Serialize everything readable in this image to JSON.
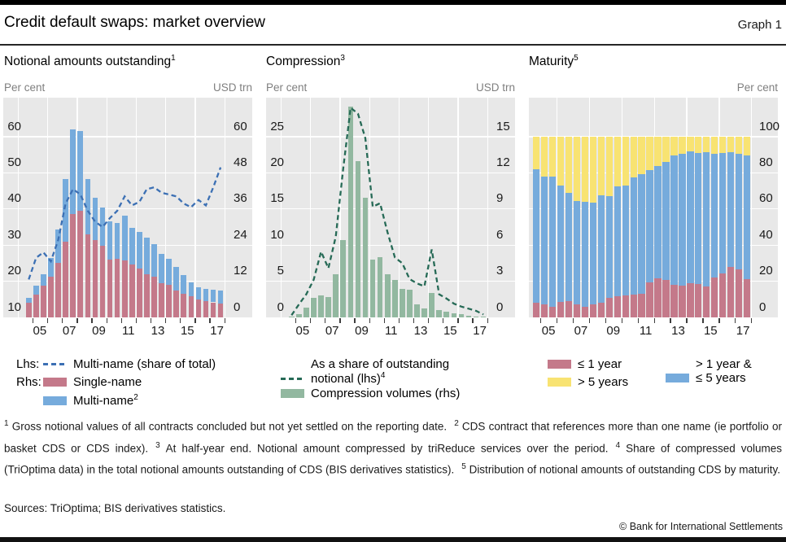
{
  "header": {
    "title": "Credit default swaps: market overview",
    "graph_label": "Graph 1"
  },
  "colors": {
    "single_name_bar": "#c4798a",
    "multi_name_bar": "#76abdc",
    "multi_share_line": "#3c70b4",
    "compression_bar": "#92b8a0",
    "compression_line": "#266a56",
    "maturity_le1y_bar": "#c4798a",
    "maturity_1to5y_bar": "#76abdc",
    "maturity_gt5y_bar": "#f8e372",
    "plot_background": "#e8e8e8",
    "gridline": "#ffffff",
    "tick_mark": "#3d3d3d",
    "muted_label": "#7f7f7f"
  },
  "panels": [
    {
      "title": "Notional amounts outstanding",
      "title_sup": "1",
      "legend": {
        "lhs_prefix": "Lhs:",
        "rhs_prefix": "Rhs:",
        "line_label": "Multi-name (share of total)",
        "bar1_label": "Single-name",
        "bar2_label": "Multi-name",
        "bar2_sup": "2"
      }
    },
    {
      "title": "Compression",
      "title_sup": "3",
      "legend": {
        "line_label_1": "As a share of outstanding",
        "line_label_2": "notional (lhs)",
        "line_sup": "4",
        "bar_label": "Compression volumes (rhs)"
      }
    },
    {
      "title": "Maturity",
      "title_sup": "5",
      "legend": {
        "item1": "≤ 1 year",
        "item2": "> 5 years",
        "item3_line1": "> 1 year &",
        "item3_line2": "≤ 5 years"
      }
    }
  ],
  "chart_data": [
    {
      "type": "stacked-bar+dashed-line",
      "title": "Notional amounts outstanding",
      "x_halfyears": [
        "04-H2",
        "05-H1",
        "05-H2",
        "06-H1",
        "06-H2",
        "07-H1",
        "07-H2",
        "08-H1",
        "08-H2",
        "09-H1",
        "09-H2",
        "10-H1",
        "10-H2",
        "11-H1",
        "11-H2",
        "12-H1",
        "12-H2",
        "13-H1",
        "13-H2",
        "14-H1",
        "14-H2",
        "15-H1",
        "15-H2",
        "16-H1",
        "16-H2",
        "17-H1",
        "17-H2"
      ],
      "x_tick_labels": [
        "05",
        "07",
        "09",
        "11",
        "13",
        "15",
        "17"
      ],
      "left_axis": {
        "label": "Per cent",
        "ticks": [
          60,
          50,
          40,
          30,
          20,
          10
        ]
      },
      "right_axis": {
        "label": "USD trn",
        "ticks": [
          60,
          48,
          36,
          24,
          12,
          0
        ]
      },
      "series": [
        {
          "name": "Single-name",
          "axis": "rhs",
          "type": "bar",
          "color": "#c4798a",
          "values": [
            4.8,
            7.6,
            10.5,
            13.5,
            18.1,
            25.1,
            34.3,
            35.4,
            27.5,
            25.7,
            23.9,
            19.1,
            19.4,
            19.0,
            17.6,
            16.2,
            14.4,
            13.5,
            11.3,
            10.8,
            9.0,
            7.9,
            6.9,
            5.9,
            5.4,
            5.0,
            4.5
          ]
        },
        {
          "name": "Multi-name",
          "axis": "rhs",
          "type": "bar",
          "color": "#76abdc",
          "values": [
            1.7,
            3.0,
            3.7,
            6.2,
            11.1,
            20.9,
            28.0,
            26.4,
            18.5,
            14.0,
            12.7,
            12.7,
            11.9,
            14.8,
            12.2,
            12.2,
            12.2,
            10.9,
            9.9,
            8.6,
            7.7,
            6.1,
            4.8,
            4.0,
            4.1,
            4.3,
            4.5
          ]
        },
        {
          "name": "Multi-name (share of total)",
          "axis": "lhs",
          "type": "line",
          "color": "#3c70b4",
          "values": [
            20.5,
            26.5,
            28,
            25.5,
            31.5,
            41.5,
            45.5,
            44,
            39.5,
            36.5,
            35,
            37.5,
            39.5,
            43.5,
            41,
            42,
            45.5,
            46,
            44.5,
            44,
            43.5,
            41.5,
            40.5,
            42.5,
            41,
            46,
            51.5
          ]
        }
      ]
    },
    {
      "type": "bar+dashed-line",
      "title": "Compression",
      "x_halfyears": [
        "04-H2",
        "05-H1",
        "05-H2",
        "06-H1",
        "06-H2",
        "07-H1",
        "07-H2",
        "08-H1",
        "08-H2",
        "09-H1",
        "09-H2",
        "10-H1",
        "10-H2",
        "11-H1",
        "11-H2",
        "12-H1",
        "12-H2",
        "13-H1",
        "13-H2",
        "14-H1",
        "14-H2",
        "15-H1",
        "15-H2",
        "16-H1",
        "16-H2",
        "17-H1",
        "17-H2"
      ],
      "x_tick_labels": [
        "05",
        "07",
        "09",
        "11",
        "13",
        "15",
        "17"
      ],
      "left_axis": {
        "label": "Per cent",
        "ticks": [
          25,
          20,
          15,
          10,
          5,
          0
        ]
      },
      "right_axis": {
        "label": "USD trn",
        "ticks": [
          15,
          12,
          9,
          6,
          3,
          0
        ]
      },
      "series": [
        {
          "name": "Compression volumes (rhs)",
          "axis": "rhs",
          "type": "bar",
          "color": "#92b8a0",
          "values": [
            0.05,
            0.3,
            0.8,
            1.6,
            1.85,
            1.7,
            3.6,
            6.4,
            17.5,
            13.0,
            9.9,
            4.8,
            5.0,
            3.6,
            3.1,
            2.35,
            2.3,
            1.1,
            0.75,
            2.0,
            0.6,
            0.45,
            0.35,
            0.25,
            0.15,
            0.1,
            0.05
          ]
        },
        {
          "name": "As a share of outstanding notional (lhs)",
          "axis": "lhs",
          "type": "line",
          "color": "#266a56",
          "values": [
            0.3,
            1.8,
            3.2,
            5.2,
            9.1,
            6.8,
            11.2,
            20.6,
            29.0,
            28.2,
            24.8,
            15.3,
            15.8,
            11.8,
            8.3,
            7.5,
            5.3,
            4.7,
            4.3,
            9.4,
            3.2,
            2.6,
            1.9,
            1.5,
            1.2,
            0.9,
            0.4
          ]
        }
      ]
    },
    {
      "type": "stacked-bar-100pct",
      "title": "Maturity",
      "x_halfyears": [
        "04-H2",
        "05-H1",
        "05-H2",
        "06-H1",
        "06-H2",
        "07-H1",
        "07-H2",
        "08-H1",
        "08-H2",
        "09-H1",
        "09-H2",
        "10-H1",
        "10-H2",
        "11-H1",
        "11-H2",
        "12-H1",
        "12-H2",
        "13-H1",
        "13-H2",
        "14-H1",
        "14-H2",
        "15-H1",
        "15-H2",
        "16-H1",
        "16-H2",
        "17-H1",
        "17-H2"
      ],
      "x_tick_labels": [
        "05",
        "07",
        "09",
        "11",
        "13",
        "15",
        "17"
      ],
      "left_axis": null,
      "right_axis": {
        "label": "Per cent",
        "ticks": [
          100,
          80,
          60,
          40,
          20,
          0
        ]
      },
      "series": [
        {
          "name": "≤ 1 year",
          "axis": "rhs",
          "type": "bar",
          "color": "#c4798a",
          "values": [
            8,
            7,
            6,
            8.5,
            9,
            7,
            6,
            7,
            8,
            11,
            11.5,
            12,
            12.5,
            13,
            19.5,
            21.5,
            20.5,
            18,
            17.5,
            19,
            18.5,
            17,
            22,
            24.5,
            28,
            26.5,
            21
          ]
        },
        {
          "name": "> 1 year & ≤ 5 years",
          "axis": "rhs",
          "type": "bar",
          "color": "#76abdc",
          "values": [
            74,
            71,
            72,
            64.5,
            60,
            57.5,
            58,
            56.5,
            59.5,
            56,
            61,
            61,
            65,
            66.5,
            62,
            62.5,
            65.5,
            71.5,
            73,
            73,
            72.5,
            74.5,
            68.5,
            66.5,
            63.5,
            64,
            68.5
          ]
        },
        {
          "name": "> 5 years",
          "axis": "rhs",
          "type": "bar",
          "color": "#f8e372",
          "values": [
            18,
            22,
            22,
            27,
            31,
            35.5,
            36,
            36.5,
            32.5,
            33,
            27.5,
            27,
            22.5,
            20.5,
            18.5,
            16,
            14,
            10.5,
            9.5,
            8,
            9,
            8.5,
            9.5,
            9,
            8.5,
            9.5,
            10.5
          ]
        }
      ]
    }
  ],
  "footnotes": [
    {
      "sup": "1",
      "text": "Gross notional values of all contracts concluded but not yet settled on the reporting date."
    },
    {
      "sup": "2",
      "text": "CDS contract that references more than one name (ie portfolio or basket CDS or CDS index)."
    },
    {
      "sup": "3",
      "text": "At half-year end. Notional amount compressed by triReduce services over the period."
    },
    {
      "sup": "4",
      "text": "Share of compressed volumes (TriOptima data) in the total notional amounts outstanding of CDS (BIS derivatives statistics)."
    },
    {
      "sup": "5",
      "text": "Distribution of notional amounts of outstanding CDS by maturity."
    }
  ],
  "footer": {
    "sources": "Sources: TriOptima; BIS derivatives statistics.",
    "copyright": "© Bank for International Settlements"
  }
}
